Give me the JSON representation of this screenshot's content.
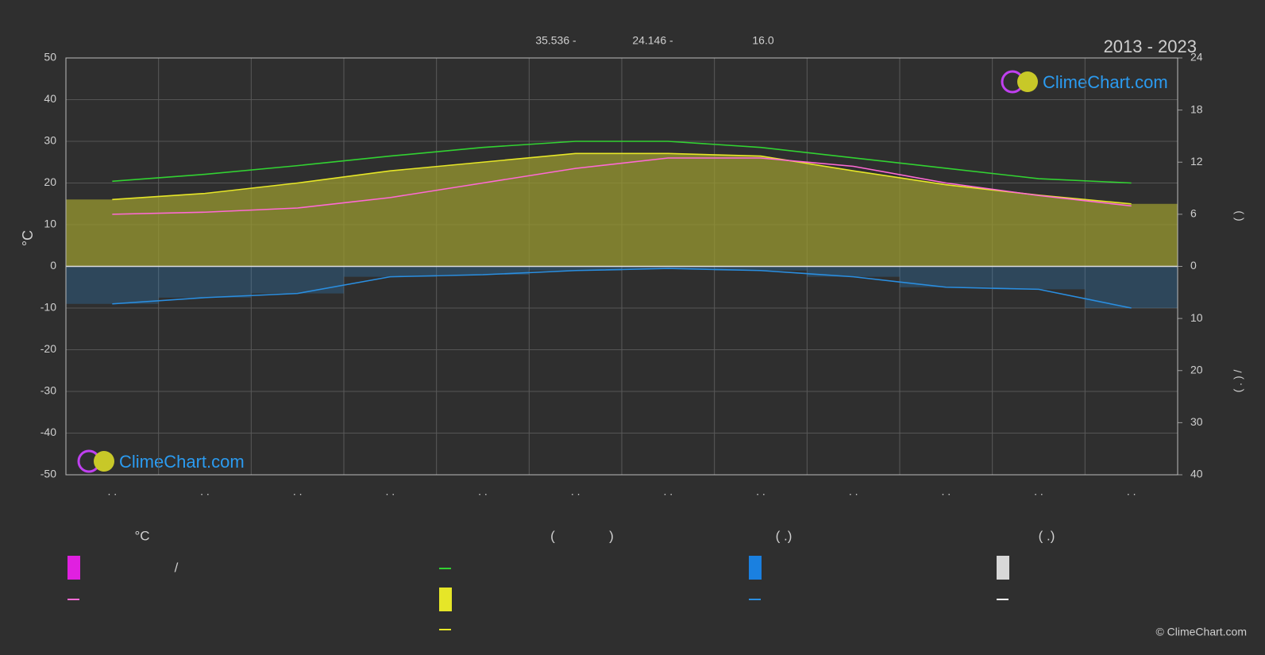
{
  "chart_data": {
    "type": "line",
    "title": "2013 - 2023",
    "header_texts": [
      "35.536 -",
      "24.146 -",
      "16.0"
    ],
    "watermark": "ClimeChart.com",
    "copyright": "© ClimeChart.com",
    "y_label": "°C",
    "y2_label": "(        )",
    "y3_label": "( . )        /",
    "categories": [
      ". .",
      ". .",
      ". .",
      ". .",
      ". .",
      ". .",
      ". .",
      ". .",
      ". .",
      ". .",
      ". .",
      ". ."
    ],
    "ylim": [
      -50,
      50
    ],
    "yticks": [
      -50,
      -40,
      -30,
      -20,
      -10,
      0,
      10,
      20,
      30,
      40,
      50
    ],
    "y2lim": [
      0,
      24
    ],
    "y2ticks": [
      0,
      6,
      12,
      18,
      24
    ],
    "y3lim": [
      0,
      40
    ],
    "y3ticks": [
      10,
      20,
      30,
      40
    ],
    "grid": true,
    "series": [
      {
        "name": "—",
        "color": "#32d232",
        "axis": "y2",
        "values": [
          9.8,
          10.6,
          11.6,
          12.7,
          13.7,
          14.4,
          14.4,
          13.7,
          12.5,
          11.3,
          10.1,
          9.6
        ]
      },
      {
        "name": "—",
        "color": "#e6e628",
        "axis": "y2",
        "fill": "#9a9a30",
        "values": [
          7.7,
          8.4,
          9.6,
          11.0,
          12.0,
          13.0,
          13.0,
          12.7,
          11.0,
          9.4,
          8.2,
          7.2
        ]
      },
      {
        "name": "—",
        "color": "#ff6ad5",
        "values": [
          12.5,
          13.0,
          14.0,
          16.5,
          20.0,
          23.5,
          26.0,
          26.0,
          24.0,
          20.0,
          17.0,
          14.5
        ]
      },
      {
        "name": "—",
        "color": "#2a8ee0",
        "axis": "y3",
        "values": [
          7.2,
          6.0,
          5.2,
          2.0,
          1.6,
          0.8,
          0.4,
          0.8,
          2.0,
          4.0,
          4.4,
          8.0
        ]
      }
    ],
    "legend_texts": [
      "°C",
      "/",
      "(",
      ")",
      "(   .)",
      "(   .)"
    ]
  }
}
